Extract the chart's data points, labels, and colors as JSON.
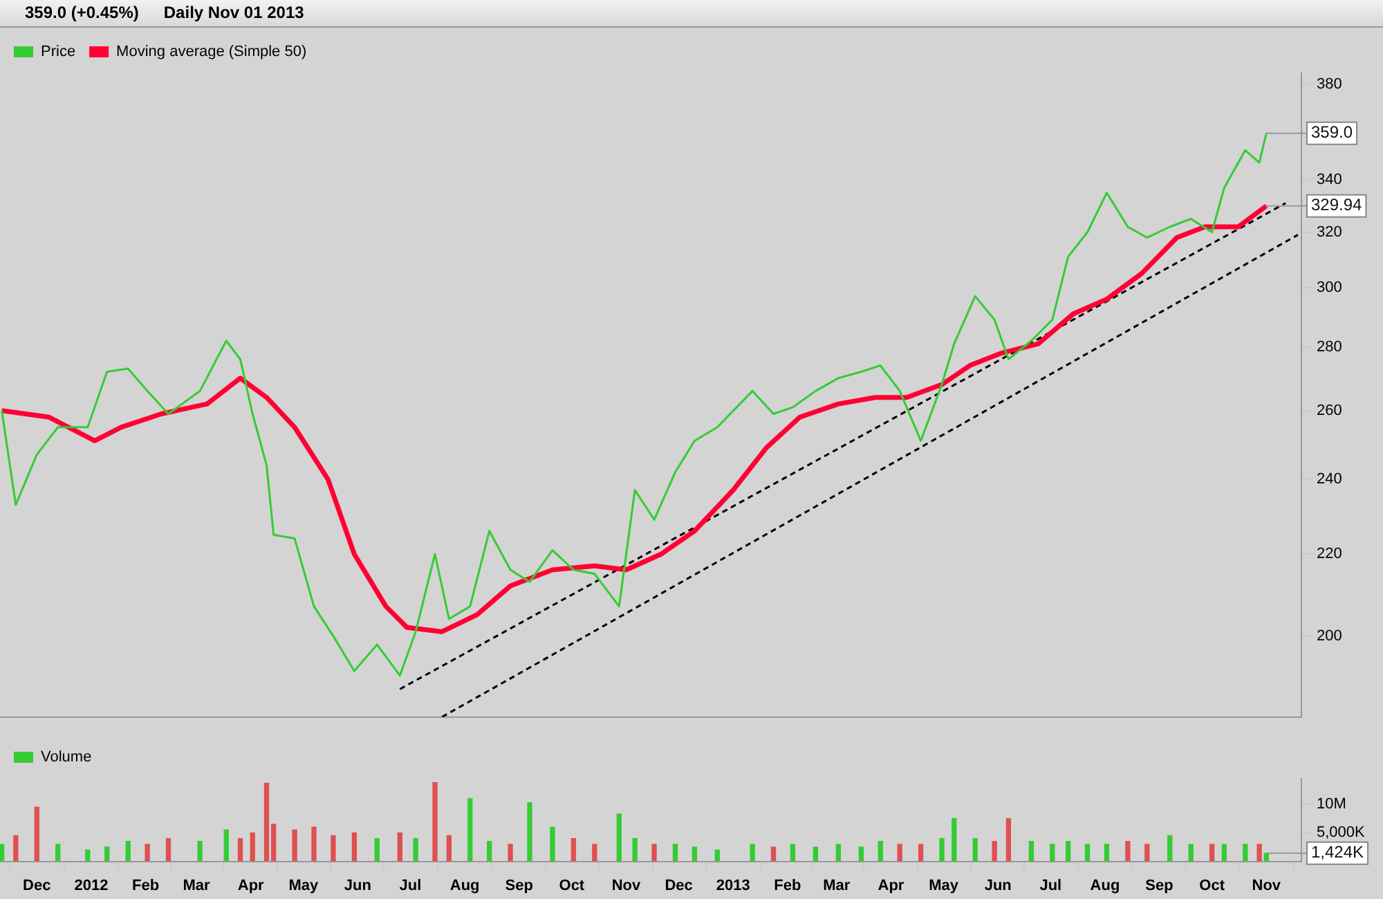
{
  "chart_data": [
    {
      "type": "line",
      "log": "y",
      "annotations": [
        "359.0 (+0.45%)",
        "Daily Nov 01 2013",
        {
          "text": "359.0",
          "x": "2013-11-01",
          "y": 359
        },
        {
          "text": "329.94",
          "x": "2013-11-01",
          "y": 329.94
        }
      ],
      "x": [
        "2011-11-11",
        "2011-11-19",
        "2011-12-01",
        "2011-12-13",
        "2011-12-30",
        "2012-01-10",
        "2012-01-22",
        "2012-02-02",
        "2012-02-14",
        "2012-03-03",
        "2012-03-18",
        "2012-03-26",
        "2012-04-02",
        "2012-04-10",
        "2012-04-14",
        "2012-04-26",
        "2012-05-07",
        "2012-05-18",
        "2012-05-30",
        "2012-06-12",
        "2012-06-25",
        "2012-07-04",
        "2012-07-15",
        "2012-07-23",
        "2012-08-04",
        "2012-08-15",
        "2012-08-27",
        "2012-09-07",
        "2012-09-20",
        "2012-10-02",
        "2012-10-14",
        "2012-10-28",
        "2012-11-06",
        "2012-11-17",
        "2012-11-29",
        "2012-12-10",
        "2012-12-23",
        "2013-01-12",
        "2013-01-24",
        "2013-02-04",
        "2013-02-17",
        "2013-03-02",
        "2013-03-15",
        "2013-03-26",
        "2013-04-06",
        "2013-04-18",
        "2013-04-30",
        "2013-05-07",
        "2013-05-19",
        "2013-05-30",
        "2013-06-07",
        "2013-06-20",
        "2013-07-02",
        "2013-07-11",
        "2013-07-22",
        "2013-08-02",
        "2013-08-14",
        "2013-08-25",
        "2013-09-07",
        "2013-09-19",
        "2013-10-01",
        "2013-10-08",
        "2013-10-20",
        "2013-10-28",
        "2013-11-01"
      ],
      "series": [
        {
          "name": "Price",
          "color": "#33cc33",
          "values": [
            260,
            233,
            247,
            255,
            255,
            272,
            273,
            266,
            259,
            266,
            282,
            276,
            259,
            244,
            225,
            224,
            207,
            200,
            192,
            198,
            191,
            201,
            220,
            204,
            207,
            226,
            216,
            213,
            221,
            216,
            215,
            207,
            237,
            229,
            242,
            251,
            255,
            266,
            259,
            261,
            266,
            270,
            272,
            274,
            266,
            251,
            268,
            281,
            297,
            289,
            276,
            282,
            289,
            311,
            320,
            335,
            322,
            318,
            322,
            325,
            320,
            337,
            352,
            347,
            359
          ]
        },
        {
          "name": "Moving average (Simple 50)",
          "color": "#ff0033",
          "x": [
            "2011-11-11",
            "2011-12-08",
            "2012-01-03",
            "2012-01-18",
            "2012-02-10",
            "2012-03-07",
            "2012-03-26",
            "2012-04-10",
            "2012-04-26",
            "2012-05-15",
            "2012-05-30",
            "2012-06-17",
            "2012-06-29",
            "2012-07-19",
            "2012-08-08",
            "2012-08-27",
            "2012-09-20",
            "2012-10-14",
            "2012-11-01",
            "2012-11-21",
            "2012-12-10",
            "2013-01-01",
            "2013-01-20",
            "2013-02-08",
            "2013-03-02",
            "2013-03-23",
            "2013-04-10",
            "2013-04-30",
            "2013-05-16",
            "2013-06-03",
            "2013-06-24",
            "2013-07-14",
            "2013-08-02",
            "2013-08-22",
            "2013-09-11",
            "2013-09-27",
            "2013-10-16",
            "2013-11-01"
          ],
          "values": [
            260,
            258,
            251,
            255,
            259,
            262,
            270,
            264,
            255,
            240,
            220,
            207,
            202,
            201,
            205,
            212,
            216,
            217,
            216,
            220,
            226,
            237,
            249,
            258,
            262,
            264,
            264,
            268,
            274,
            278,
            281,
            291,
            296,
            305,
            318,
            322,
            322,
            329.94
          ]
        },
        {
          "color": "#000000",
          "line_style": "dashed",
          "x": [
            "2012-06-25",
            "2013-11-12"
          ],
          "values": [
            188,
            331
          ]
        },
        {
          "color": "#000000",
          "line_style": "dashed",
          "x": [
            "2012-07-19",
            "2013-11-19"
          ],
          "values": [
            182,
            319
          ]
        }
      ],
      "xlim": [
        "2011-11-10",
        "2013-11-21"
      ],
      "ylim": [
        182,
        385
      ],
      "yticks": [
        200,
        220,
        240,
        260,
        280,
        300,
        320,
        340,
        380
      ],
      "tick_labels": "y",
      "legend": "top left",
      "marker": "none"
    },
    {
      "type": "bar",
      "annotations": [
        {
          "text": "1,424K",
          "x": "2013-11-01",
          "y": 1424000
        }
      ],
      "x": [
        "2011-11-11",
        "2011-11-19",
        "2011-12-01",
        "2011-12-13",
        "2011-12-30",
        "2012-01-10",
        "2012-01-22",
        "2012-02-02",
        "2012-02-14",
        "2012-03-03",
        "2012-03-18",
        "2012-03-26",
        "2012-04-02",
        "2012-04-10",
        "2012-04-14",
        "2012-04-26",
        "2012-05-07",
        "2012-05-18",
        "2012-05-30",
        "2012-06-12",
        "2012-06-25",
        "2012-07-04",
        "2012-07-15",
        "2012-07-23",
        "2012-08-04",
        "2012-08-15",
        "2012-08-27",
        "2012-09-07",
        "2012-09-20",
        "2012-10-02",
        "2012-10-14",
        "2012-10-28",
        "2012-11-06",
        "2012-11-17",
        "2012-11-29",
        "2012-12-10",
        "2012-12-23",
        "2013-01-12",
        "2013-01-24",
        "2013-02-04",
        "2013-02-17",
        "2013-03-02",
        "2013-03-15",
        "2013-03-26",
        "2013-04-06",
        "2013-04-18",
        "2013-04-30",
        "2013-05-07",
        "2013-05-19",
        "2013-05-30",
        "2013-06-07",
        "2013-06-20",
        "2013-07-02",
        "2013-07-11",
        "2013-07-22",
        "2013-08-02",
        "2013-08-14",
        "2013-08-25",
        "2013-09-07",
        "2013-09-19",
        "2013-10-01",
        "2013-10-08",
        "2013-10-20",
        "2013-10-28",
        "2013-11-01"
      ],
      "series": [
        {
          "name": "Volume",
          "color": "#33cc33",
          "values": [
            3000000,
            4500000,
            9500000,
            3000000,
            2000000,
            2500000,
            3500000,
            3000000,
            4000000,
            3500000,
            5500000,
            4000000,
            5000000,
            13700000,
            6500000,
            5500000,
            6000000,
            4500000,
            5000000,
            4000000,
            5000000,
            4000000,
            13800000,
            4500000,
            11000000,
            3500000,
            3000000,
            10300000,
            6000000,
            4000000,
            3000000,
            8300000,
            4000000,
            3000000,
            3000000,
            2500000,
            2000000,
            3000000,
            2500000,
            3000000,
            2500000,
            3000000,
            2500000,
            3500000,
            3000000,
            3000000,
            4000000,
            7500000,
            4000000,
            3500000,
            7500000,
            3500000,
            3000000,
            3500000,
            3000000,
            3000000,
            3500000,
            3000000,
            4500000,
            3000000,
            3000000,
            3000000,
            3000000,
            3000000,
            1424000
          ],
          "colors": [
            "#33cc33",
            "#e05050",
            "#e05050",
            "#33cc33",
            "#33cc33",
            "#33cc33",
            "#33cc33",
            "#e05050",
            "#e05050",
            "#33cc33",
            "#33cc33",
            "#e05050",
            "#e05050",
            "#e05050",
            "#e05050",
            "#e05050",
            "#e05050",
            "#e05050",
            "#e05050",
            "#33cc33",
            "#e05050",
            "#33cc33",
            "#e05050",
            "#e05050",
            "#33cc33",
            "#33cc33",
            "#e05050",
            "#33cc33",
            "#33cc33",
            "#e05050",
            "#e05050",
            "#33cc33",
            "#33cc33",
            "#e05050",
            "#33cc33",
            "#33cc33",
            "#33cc33",
            "#33cc33",
            "#e05050",
            "#33cc33",
            "#33cc33",
            "#33cc33",
            "#33cc33",
            "#33cc33",
            "#e05050",
            "#e05050",
            "#33cc33",
            "#33cc33",
            "#33cc33",
            "#e05050",
            "#e05050",
            "#33cc33",
            "#33cc33",
            "#33cc33",
            "#33cc33",
            "#33cc33",
            "#e05050",
            "#e05050",
            "#33cc33",
            "#33cc33",
            "#e05050",
            "#33cc33",
            "#33cc33",
            "#e05050",
            "#33cc33"
          ]
        }
      ],
      "xlim": [
        "2011-11-10",
        "2013-11-21"
      ],
      "xticks": [
        {
          "value": "2011-12-01",
          "label": "Dec"
        },
        {
          "value": "2012-01-01",
          "label": "2012"
        },
        {
          "value": "2012-02-01",
          "label": "Feb"
        },
        {
          "value": "2012-03-01",
          "label": "Mar"
        },
        {
          "value": "2012-04-01",
          "label": "Apr"
        },
        {
          "value": "2012-05-01",
          "label": "May"
        },
        {
          "value": "2012-06-01",
          "label": "Jun"
        },
        {
          "value": "2012-07-01",
          "label": "Jul"
        },
        {
          "value": "2012-08-01",
          "label": "Aug"
        },
        {
          "value": "2012-09-01",
          "label": "Sep"
        },
        {
          "value": "2012-10-01",
          "label": "Oct"
        },
        {
          "value": "2012-11-01",
          "label": "Nov"
        },
        {
          "value": "2012-12-01",
          "label": "Dec"
        },
        {
          "value": "2013-01-01",
          "label": "2013"
        },
        {
          "value": "2013-02-01",
          "label": "Feb"
        },
        {
          "value": "2013-03-01",
          "label": "Mar"
        },
        {
          "value": "2013-04-01",
          "label": "Apr"
        },
        {
          "value": "2013-05-01",
          "label": "May"
        },
        {
          "value": "2013-06-01",
          "label": "Jun"
        },
        {
          "value": "2013-07-01",
          "label": "Jul"
        },
        {
          "value": "2013-08-01",
          "label": "Aug"
        },
        {
          "value": "2013-09-01",
          "label": "Sep"
        },
        {
          "value": "2013-10-01",
          "label": "Oct"
        },
        {
          "value": "2013-11-01",
          "label": "Nov"
        }
      ],
      "ylim": [
        0,
        14500000
      ],
      "yticks": [
        {
          "value": 5000000,
          "label": "5,000K"
        },
        {
          "value": 10000000,
          "label": "10M"
        }
      ],
      "legend": "top left"
    }
  ]
}
